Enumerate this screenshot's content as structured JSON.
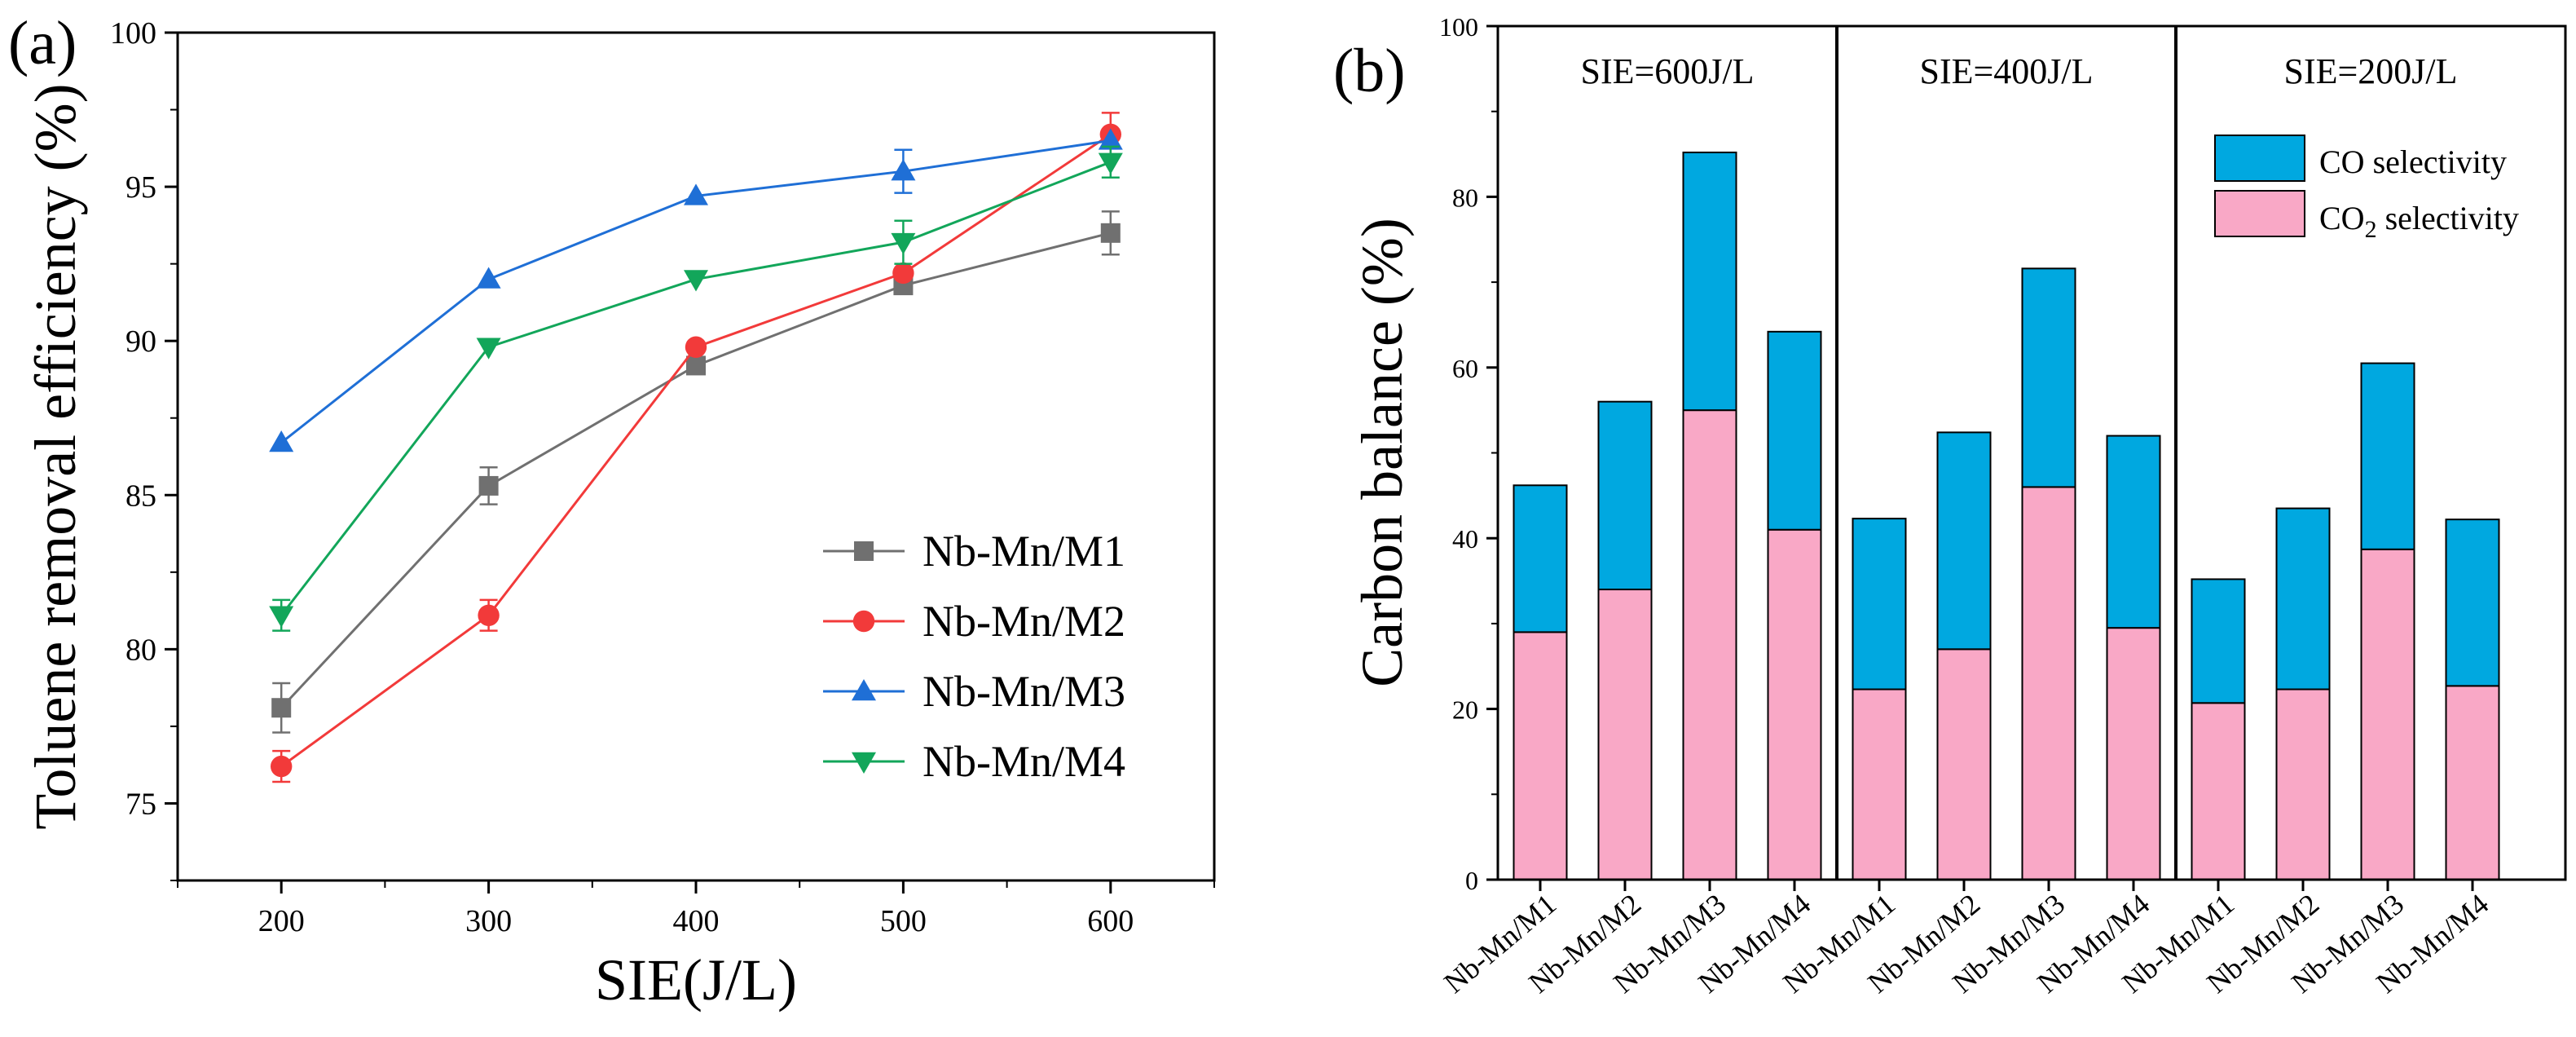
{
  "colors": {
    "M1": "#707070",
    "M2": "#f23a3a",
    "M3": "#1f6fd6",
    "M4": "#12a65a",
    "co": "#00a8e0",
    "co2": "#f9a8c6"
  },
  "chart_data": [
    {
      "type": "line",
      "panel_label": "(a)",
      "xlabel": "SIE(J/L)",
      "ylabel": "Toluene removal efficiency (%)",
      "xlim": [
        150,
        650
      ],
      "ylim": [
        72.5,
        100
      ],
      "x_ticks": [
        200,
        300,
        400,
        500,
        600
      ],
      "y_ticks": [
        75,
        80,
        85,
        90,
        95,
        100
      ],
      "x": [
        200,
        300,
        400,
        500,
        600
      ],
      "legend_position": "lower-right",
      "series": [
        {
          "key": "M1",
          "name": "Nb-Mn/M1",
          "marker": "square",
          "values": [
            78.1,
            85.3,
            89.2,
            91.8,
            93.5
          ],
          "errors": [
            0.8,
            0.6,
            0.0,
            0.0,
            0.7
          ]
        },
        {
          "key": "M2",
          "name": "Nb-Mn/M2",
          "marker": "circle",
          "values": [
            76.2,
            81.1,
            89.8,
            92.2,
            96.7
          ],
          "errors": [
            0.5,
            0.5,
            0.0,
            0.0,
            0.7
          ]
        },
        {
          "key": "M3",
          "name": "Nb-Mn/M3",
          "marker": "triangle-up",
          "values": [
            86.7,
            92.0,
            94.7,
            95.5,
            96.5
          ],
          "errors": [
            0.0,
            0.0,
            0.0,
            0.7,
            0.0
          ]
        },
        {
          "key": "M4",
          "name": "Nb-Mn/M4",
          "marker": "triangle-down",
          "values": [
            81.1,
            89.8,
            92.0,
            93.2,
            95.8
          ],
          "errors": [
            0.5,
            0.0,
            0.0,
            0.7,
            0.5
          ]
        }
      ]
    },
    {
      "type": "bar",
      "stacked": true,
      "panel_label": "(b)",
      "ylabel": "Carbon balance (%)",
      "ylim": [
        0,
        100
      ],
      "y_ticks": [
        0,
        20,
        40,
        60,
        80,
        100
      ],
      "groups": [
        {
          "label": "SIE=600J/L",
          "categories": [
            "Nb-Mn/M1",
            "Nb-Mn/M2",
            "Nb-Mn/M3",
            "Nb-Mn/M4"
          ],
          "co2": [
            29,
            34,
            55,
            41
          ],
          "co": [
            17.2,
            22,
            30.2,
            23.2
          ]
        },
        {
          "label": "SIE=400J/L",
          "categories": [
            "Nb-Mn/M1",
            "Nb-Mn/M2",
            "Nb-Mn/M3",
            "Nb-Mn/M4"
          ],
          "co2": [
            22.3,
            27,
            46,
            29.5
          ],
          "co": [
            20,
            25.4,
            25.6,
            22.5
          ]
        },
        {
          "label": "SIE=200J/L",
          "categories": [
            "Nb-Mn/M1",
            "Nb-Mn/M2",
            "Nb-Mn/M3",
            "Nb-Mn/M4"
          ],
          "co2": [
            20.7,
            22.3,
            38.7,
            22.7
          ],
          "co": [
            14.5,
            21.2,
            21.8,
            19.5
          ]
        }
      ],
      "legend": {
        "co_label": "CO selectivity",
        "co2_label_main": "CO",
        "co2_label_sub": "2",
        "co2_label_tail": " selectivity"
      },
      "legend_position": "upper-right"
    }
  ]
}
